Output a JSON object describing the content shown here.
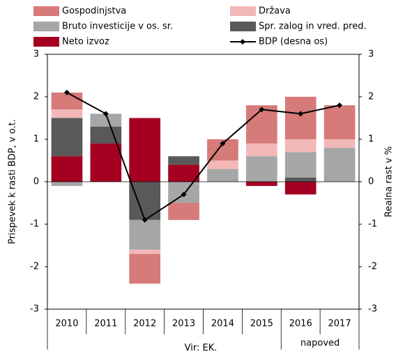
{
  "chart_data": {
    "type": "bar",
    "categories": [
      "2010",
      "2011",
      "2012",
      "2013",
      "2014",
      "2015",
      "2016",
      "2017"
    ],
    "series": [
      {
        "name": "Gospodinjstva",
        "color": "#d67a7a",
        "values": [
          0.4,
          0,
          -0.7,
          -0.4,
          0.5,
          0.9,
          1.0,
          0.8
        ]
      },
      {
        "name": "Država",
        "color": "#f2b8b8",
        "values": [
          0.2,
          0,
          -0.1,
          0,
          0.2,
          0.3,
          0.3,
          0.2
        ]
      },
      {
        "name": "Bruto investicije v os. sr.",
        "color": "#a6a6a6",
        "values": [
          -0.1,
          0.3,
          -0.7,
          -0.5,
          0.3,
          0.6,
          0.6,
          0.8
        ]
      },
      {
        "name": "Spr. zalog in vred. pred.",
        "color": "#595959",
        "values": [
          0.9,
          0.4,
          -0.9,
          0.2,
          0,
          0,
          0.1,
          0
        ]
      },
      {
        "name": "Neto izvoz",
        "color": "#a50021",
        "values": [
          0.6,
          0.9,
          1.5,
          0.4,
          0,
          -0.1,
          -0.3,
          0
        ]
      },
      {
        "name": "BDP (desna os)",
        "color": "#000000",
        "type": "line",
        "axis": "y2",
        "values": [
          2.1,
          1.6,
          -0.9,
          -0.3,
          0.9,
          1.7,
          1.6,
          1.8
        ]
      }
    ],
    "ylabel": "Prispevek k rasti BDP, v o.t.",
    "y2label": "Realna rast v %",
    "ylim": [
      -3,
      3
    ],
    "yticks": [
      -3,
      -2,
      -1,
      0,
      1,
      2,
      3
    ],
    "y2lim": [
      -3,
      3
    ],
    "y2ticks": [
      -3,
      -2,
      -1,
      0,
      1,
      2,
      3
    ],
    "forecast_label": "napoved",
    "source": "Vir: EK.",
    "legend": "top"
  }
}
